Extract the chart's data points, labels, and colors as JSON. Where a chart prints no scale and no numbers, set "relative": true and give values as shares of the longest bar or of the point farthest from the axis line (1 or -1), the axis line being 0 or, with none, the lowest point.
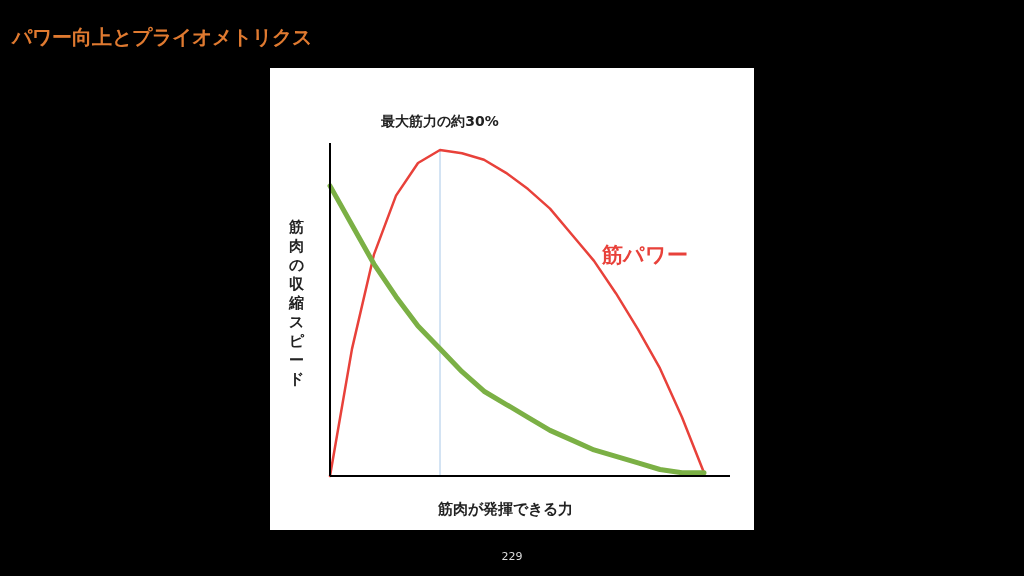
{
  "chart_data": {
    "type": "line",
    "title": "パワー向上とプライオメトリクス",
    "xlabel": "筋肉が発揮できる力",
    "ylabel": "筋肉の収縮スピード",
    "relative": true,
    "categories": [
      null,
      null,
      null,
      null,
      null,
      null,
      null,
      null,
      null,
      null,
      null,
      null,
      null,
      null,
      null,
      null,
      null,
      null
    ],
    "series": [
      {
        "name": "筋パワー",
        "color": "#e8413a",
        "values": [
          0,
          0.39,
          0.68,
          0.86,
          0.96,
          1,
          0.99,
          0.97,
          0.93,
          0.88,
          0.82,
          0.74,
          0.66,
          0.56,
          0.45,
          0.33,
          0.18,
          0.01
        ]
      },
      {
        "color": "#7bb045",
        "values": [
          0.89,
          0.77,
          0.65,
          0.55,
          0.46,
          0.39,
          0.32,
          0.26,
          0.22,
          0.18,
          0.14,
          0.11,
          0.08,
          0.06,
          0.04,
          0.02,
          0.01,
          0.01
        ]
      }
    ],
    "annotations": [
      "最大筋力の約30%",
      "229"
    ],
    "grid": false,
    "legend": false,
    "marker": "none",
    "line_style": "solid"
  }
}
